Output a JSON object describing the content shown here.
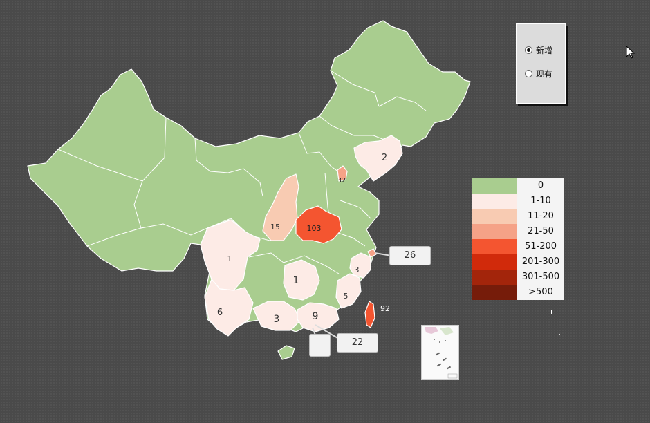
{
  "radio": {
    "options": [
      {
        "label": "新增",
        "selected": true
      },
      {
        "label": "现有",
        "selected": false
      }
    ]
  },
  "legend": [
    {
      "label": "0",
      "color": "#a9cd8f"
    },
    {
      "label": "1-10",
      "color": "#fdebe6"
    },
    {
      "label": "11-20",
      "color": "#f8cbb2"
    },
    {
      "label": "21-50",
      "color": "#f5a287"
    },
    {
      "label": "51-200",
      "color": "#f45530"
    },
    {
      "label": "201-300",
      "color": "#d12a0b"
    },
    {
      "label": "301-500",
      "color": "#a3250b"
    },
    {
      "label": ">500",
      "color": "#761c0a"
    }
  ],
  "map_labels": {
    "liaoning": "2",
    "beijing": "32",
    "shaanxi": "15",
    "henan": "103",
    "sichuan": "1",
    "hunan": "1",
    "zhejiang": "3",
    "fujian": "5",
    "yunnan": "6",
    "guangxi": "3",
    "guangdong": "9",
    "taiwan": "92"
  },
  "callouts": {
    "shanghai": "26",
    "hongkong": "22",
    "macau": ""
  }
}
